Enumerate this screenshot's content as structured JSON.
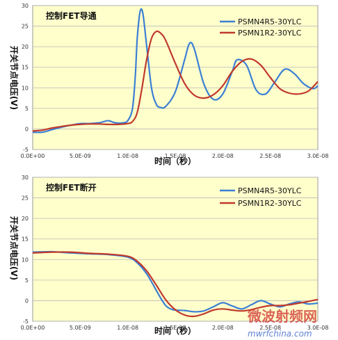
{
  "chart_data": [
    {
      "type": "line",
      "title": "控制FET导通",
      "xlabel": "时间（秒）",
      "ylabel": "开关节点电压(V)",
      "xlim": [
        0,
        3e-08
      ],
      "ylim": [
        -5,
        30
      ],
      "xticks": [
        "0.0E+00",
        "5.0E-09",
        "1.0E-08",
        "1.5E-08",
        "2.0E-08",
        "2.5E-08",
        "3.0E-08"
      ],
      "yticks": [
        "-5",
        "0",
        "5",
        "10",
        "15",
        "20",
        "25",
        "30"
      ],
      "grid": true,
      "legend": "top-right",
      "series": [
        {
          "name": "PSMN4R5-30YLC",
          "color": "#3b7fd4",
          "x": [
            0,
            1e-09,
            2e-09,
            3e-09,
            4e-09,
            5e-09,
            6e-09,
            7e-09,
            7.5e-09,
            8e-09,
            8.5e-09,
            9e-09,
            9.5e-09,
            1e-08,
            1.05e-08,
            1.08e-08,
            1.1e-08,
            1.13e-08,
            1.16e-08,
            1.2e-08,
            1.25e-08,
            1.3e-08,
            1.35e-08,
            1.4e-08,
            1.5e-08,
            1.6e-08,
            1.65e-08,
            1.7e-08,
            1.8e-08,
            1.9e-08,
            2e-08,
            2.1e-08,
            2.15e-08,
            2.25e-08,
            2.35e-08,
            2.45e-08,
            2.55e-08,
            2.65e-08,
            2.75e-08,
            2.85e-08,
            2.95e-08,
            3e-08
          ],
          "y": [
            -0.8,
            -0.8,
            -0.2,
            0.4,
            0.9,
            1.3,
            1.3,
            1.5,
            1.8,
            2.0,
            1.6,
            1.4,
            1.5,
            2.0,
            5,
            13,
            22,
            28.5,
            28,
            20,
            10,
            6,
            5.2,
            5.5,
            9,
            17,
            20.8,
            19.5,
            11,
            7.2,
            8.5,
            14,
            16.8,
            15.5,
            9.5,
            8.5,
            11.5,
            14.5,
            13.5,
            11,
            9.8,
            10.5
          ]
        },
        {
          "name": "PSMN1R2-30YLC",
          "color": "#c0392b",
          "x": [
            0,
            1e-09,
            2e-09,
            3e-09,
            4e-09,
            5e-09,
            6e-09,
            7e-09,
            8e-09,
            9e-09,
            1e-08,
            1.05e-08,
            1.1e-08,
            1.15e-08,
            1.2e-08,
            1.25e-08,
            1.3e-08,
            1.35e-08,
            1.4e-08,
            1.5e-08,
            1.6e-08,
            1.7e-08,
            1.8e-08,
            1.9e-08,
            2e-08,
            2.1e-08,
            2.2e-08,
            2.3e-08,
            2.4e-08,
            2.5e-08,
            2.6e-08,
            2.7e-08,
            2.8e-08,
            2.9e-08,
            3e-08
          ],
          "y": [
            -0.5,
            -0.3,
            0.2,
            0.6,
            0.9,
            1.1,
            1.2,
            1.2,
            1.1,
            1.1,
            1.3,
            1.8,
            4,
            10,
            17,
            22,
            23.7,
            23.2,
            21.5,
            16,
            11,
            8.2,
            7.5,
            8.3,
            10.5,
            14,
            16.4,
            17,
            15.5,
            12.5,
            9.8,
            8.7,
            8.5,
            9.2,
            11.5
          ]
        }
      ]
    },
    {
      "type": "line",
      "title": "控制FET断开",
      "xlabel": "时间（秒）",
      "ylabel": "开关节点电压(V)",
      "xlim": [
        0,
        3e-08
      ],
      "ylim": [
        -5,
        30
      ],
      "xticks": [
        "0.0E+00",
        "5.0E-09",
        "1.0E-08",
        "1.5E-08",
        "2.0E-08",
        "2.5E-08",
        "3.0E-08"
      ],
      "yticks": [
        "-5",
        "0",
        "5",
        "10",
        "15",
        "20",
        "25",
        "30"
      ],
      "grid": true,
      "legend": "top-right",
      "series": [
        {
          "name": "PSMN4R5-30YLC",
          "color": "#3b7fd4",
          "x": [
            0,
            2e-09,
            4e-09,
            6e-09,
            8e-09,
            1e-08,
            1.1e-08,
            1.2e-08,
            1.3e-08,
            1.35e-08,
            1.4e-08,
            1.45e-08,
            1.5e-08,
            1.6e-08,
            1.7e-08,
            1.8e-08,
            1.9e-08,
            2e-08,
            2.1e-08,
            2.2e-08,
            2.3e-08,
            2.4e-08,
            2.5e-08,
            2.6e-08,
            2.7e-08,
            2.8e-08,
            2.9e-08,
            3e-08
          ],
          "y": [
            11.8,
            11.9,
            11.6,
            11.4,
            11.2,
            10.6,
            9.2,
            6.5,
            2.5,
            0.5,
            -1.2,
            -2.0,
            -2.3,
            -2.4,
            -2.7,
            -2.5,
            -1.5,
            -0.5,
            -1.3,
            -2.0,
            -1.0,
            0,
            -0.8,
            -1.5,
            -0.8,
            -0.3,
            -0.8,
            -0.6
          ]
        },
        {
          "name": "PSMN1R2-30YLC",
          "color": "#c0392b",
          "x": [
            0,
            2e-09,
            4e-09,
            6e-09,
            8e-09,
            1e-08,
            1.1e-08,
            1.2e-08,
            1.3e-08,
            1.4e-08,
            1.5e-08,
            1.6e-08,
            1.7e-08,
            1.8e-08,
            1.9e-08,
            2e-08,
            2.1e-08,
            2.2e-08,
            2.3e-08,
            2.4e-08,
            2.5e-08,
            2.6e-08,
            2.7e-08,
            2.8e-08,
            2.9e-08,
            3e-08
          ],
          "y": [
            11.6,
            11.8,
            11.8,
            11.5,
            11.3,
            10.8,
            9.6,
            7.2,
            3.8,
            0.2,
            -2.2,
            -3.5,
            -3.8,
            -3.2,
            -2.3,
            -2.0,
            -2.3,
            -2.5,
            -2.2,
            -1.6,
            -1.2,
            -1.2,
            -1.0,
            -0.6,
            -0.2,
            0.3
          ]
        }
      ]
    }
  ],
  "watermark": {
    "main": "微波射频网",
    "sub": "mwrfchina.com"
  }
}
